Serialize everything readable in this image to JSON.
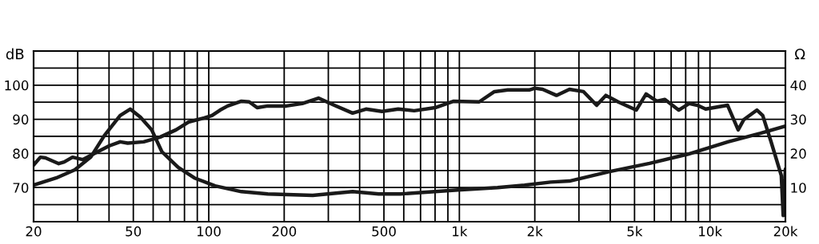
{
  "chart_data": {
    "type": "line",
    "xlabel": null,
    "ylabel": "dB",
    "y2label": "Ω",
    "log": "x",
    "grid": true,
    "marker": "none",
    "line_style": "solid",
    "xlim": [
      20,
      20000
    ],
    "xticks": [
      {
        "value": 20,
        "label": "20"
      },
      {
        "value": 30,
        "label": null
      },
      {
        "value": 40,
        "label": null
      },
      {
        "value": 50,
        "label": "50"
      },
      {
        "value": 60,
        "label": null
      },
      {
        "value": 70,
        "label": null
      },
      {
        "value": 80,
        "label": null
      },
      {
        "value": 90,
        "label": null
      },
      {
        "value": 100,
        "label": "100"
      },
      {
        "value": 200,
        "label": "200"
      },
      {
        "value": 300,
        "label": null
      },
      {
        "value": 400,
        "label": null
      },
      {
        "value": 500,
        "label": "500"
      },
      {
        "value": 600,
        "label": null
      },
      {
        "value": 700,
        "label": null
      },
      {
        "value": 800,
        "label": null
      },
      {
        "value": 900,
        "label": null
      },
      {
        "value": 1000,
        "label": "1k"
      },
      {
        "value": 2000,
        "label": "2k"
      },
      {
        "value": 3000,
        "label": null
      },
      {
        "value": 4000,
        "label": null
      },
      {
        "value": 5000,
        "label": "5k"
      },
      {
        "value": 6000,
        "label": null
      },
      {
        "value": 7000,
        "label": null
      },
      {
        "value": 8000,
        "label": null
      },
      {
        "value": 9000,
        "label": null
      },
      {
        "value": 10000,
        "label": "10k"
      },
      {
        "value": 20000,
        "label": "20k"
      }
    ],
    "ylim": [
      60,
      110
    ],
    "yticks": [
      {
        "value": 60,
        "label": null
      },
      {
        "value": 65,
        "label": null
      },
      70,
      {
        "value": 75,
        "label": null
      },
      80,
      {
        "value": 85,
        "label": null
      },
      90,
      {
        "value": 95,
        "label": null
      },
      100,
      {
        "value": 105,
        "label": null
      },
      {
        "value": 110,
        "label": null
      }
    ],
    "y2lim": [
      0,
      50
    ],
    "y2ticks": [
      10,
      20,
      30,
      40
    ],
    "series": [
      {
        "color": "#1a1a1a",
        "axis": "y",
        "x": [
          20,
          21.3,
          22.3,
          25.2,
          26.5,
          28.6,
          31.4,
          35.2,
          40,
          44.3,
          47.5,
          55,
          64,
          74,
          83,
          96,
          103,
          111,
          119,
          135,
          145,
          156,
          172,
          190,
          204,
          236,
          274,
          317,
          375,
          424,
          491,
          570,
          660,
          800,
          950,
          1200,
          1380,
          1560,
          1900,
          2000,
          2150,
          2440,
          2750,
          3130,
          3530,
          3840,
          4300,
          5080,
          5560,
          6130,
          6610,
          7500,
          8260,
          8910,
          9610,
          11760,
          12960,
          13650,
          15400,
          16240,
          17500,
          19260,
          19600,
          20000
        ],
        "values": [
          76.6,
          78.9,
          78.7,
          77.0,
          77.5,
          78.9,
          78.2,
          80.1,
          82.2,
          83.4,
          83.0,
          83.4,
          84.8,
          86.9,
          89.2,
          90.4,
          91.1,
          92.7,
          93.9,
          95.3,
          95.1,
          93.4,
          93.9,
          93.9,
          93.9,
          94.6,
          96.2,
          94.1,
          91.8,
          93.0,
          92.3,
          93.0,
          92.5,
          93.4,
          95.3,
          95.1,
          98.1,
          98.6,
          98.6,
          99.1,
          98.8,
          97.0,
          98.8,
          98.1,
          94.1,
          97.0,
          95.1,
          92.7,
          97.4,
          95.3,
          95.8,
          92.7,
          94.6,
          94.1,
          93.0,
          94.1,
          86.9,
          89.9,
          92.7,
          91.1,
          83.6,
          73.5,
          61.8,
          75.4
        ]
      },
      {
        "color": "#1a1a1a",
        "axis": "y2",
        "x": [
          20,
          24.6,
          29.2,
          33.8,
          38.3,
          44.3,
          48.6,
          53.4,
          59.2,
          65,
          75.5,
          87.7,
          106,
          135,
          172,
          260,
          375,
          477,
          580,
          986,
          1420,
          1820,
          2310,
          2750,
          3980,
          5740,
          8180,
          11800,
          15900,
          20000
        ],
        "values": [
          10.7,
          12.8,
          15.2,
          18.9,
          25.2,
          31.1,
          33,
          30.6,
          26.9,
          20.5,
          15.9,
          12.8,
          10.5,
          8.8,
          8.1,
          7.7,
          8.8,
          8.1,
          8.1,
          9.3,
          10.0,
          10.7,
          11.6,
          11.9,
          14.7,
          17.1,
          19.8,
          23.4,
          25.9,
          28.0
        ]
      }
    ]
  }
}
